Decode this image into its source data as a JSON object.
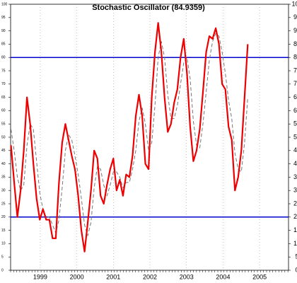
{
  "chart_data": {
    "type": "line",
    "title": "Stochastic Oscillator (84.9359)",
    "x": [
      1998.7,
      1998.788,
      1998.875,
      1998.963,
      1999.05,
      1999.138,
      1999.225,
      1999.313,
      1999.4,
      1999.488,
      1999.575,
      1999.663,
      1999.75,
      1999.838,
      1999.925,
      2000.013,
      2000.1,
      2000.188,
      2000.275,
      2000.363,
      2000.45,
      2000.538,
      2000.625,
      2000.713,
      2000.8,
      2000.888,
      2000.975,
      2001.063,
      2001.15,
      2001.238,
      2001.325,
      2001.413,
      2001.5,
      2001.588,
      2001.675,
      2001.763,
      2001.85,
      2001.938,
      2002.025,
      2002.113,
      2002.2,
      2002.288,
      2002.375,
      2002.463,
      2002.55,
      2002.638,
      2002.725,
      2002.813,
      2002.9,
      2002.988,
      2003.075,
      2003.163,
      2003.25,
      2003.338,
      2003.425,
      2003.513,
      2003.6,
      2003.688,
      2003.775,
      2003.863,
      2003.95,
      2004.038,
      2004.125,
      2004.213,
      2004.3,
      2004.388,
      2004.475,
      2004.563,
      2004.65,
      2004.738,
      2004.825,
      2004.913,
      2005.0,
      2005.088,
      2005.175
    ],
    "series": [
      {
        "color": "#ee0000",
        "dashed": false,
        "width": 2.2,
        "values": [
          47,
          33,
          20,
          30,
          45,
          65,
          55,
          40,
          27,
          19,
          23,
          19,
          19,
          12,
          12,
          33,
          48,
          55,
          49,
          43,
          38,
          28,
          15,
          7,
          18,
          30,
          45,
          42,
          28,
          25,
          32,
          38,
          42,
          30,
          34,
          28,
          36,
          35,
          43,
          58,
          66,
          58,
          40,
          38,
          65,
          82,
          93,
          82,
          65,
          52,
          55,
          63,
          68,
          80,
          87,
          74,
          54,
          41,
          45,
          53,
          67,
          82,
          88,
          87,
          91,
          85,
          70,
          68,
          54,
          49,
          30,
          35,
          45,
          65,
          85
        ]
      },
      {
        "color": "#777777",
        "dashed": true,
        "width": 1,
        "values": [
          53,
          45,
          35,
          30,
          32,
          47,
          55,
          53,
          41,
          29,
          23,
          20,
          20,
          17,
          14,
          19,
          31,
          45,
          51,
          49,
          43,
          36,
          27,
          17,
          13,
          18,
          31,
          39,
          38,
          32,
          28,
          32,
          37,
          37,
          35,
          31,
          33,
          33,
          38,
          45,
          56,
          61,
          55,
          45,
          48,
          62,
          80,
          86,
          80,
          66,
          57,
          57,
          62,
          70,
          78,
          80,
          72,
          56,
          47,
          46,
          55,
          67,
          79,
          86,
          89,
          88,
          82,
          74,
          64,
          57,
          44,
          38,
          37,
          48,
          65
        ]
      }
    ],
    "hlines": [
      {
        "value": 80,
        "color": "#0000cc"
      },
      {
        "value": 20,
        "color": "#0000cc"
      }
    ],
    "xlim": [
      1998.69,
      2006.29
    ],
    "xticks": [
      {
        "value": 1999.5,
        "label": "1999"
      },
      {
        "value": 2000.5,
        "label": "2000"
      },
      {
        "value": 2001.5,
        "label": "2001"
      },
      {
        "value": 2002.5,
        "label": "2002"
      },
      {
        "value": 2003.5,
        "label": "2003"
      },
      {
        "value": 2004.5,
        "label": "2004"
      },
      {
        "value": 2005.5,
        "label": "2005"
      }
    ],
    "ylim": [
      0,
      100
    ],
    "yticks": [
      0,
      5,
      10,
      15,
      20,
      25,
      30,
      35,
      40,
      45,
      50,
      55,
      60,
      65,
      70,
      75,
      80,
      85,
      90,
      95,
      100
    ],
    "grid": true
  }
}
